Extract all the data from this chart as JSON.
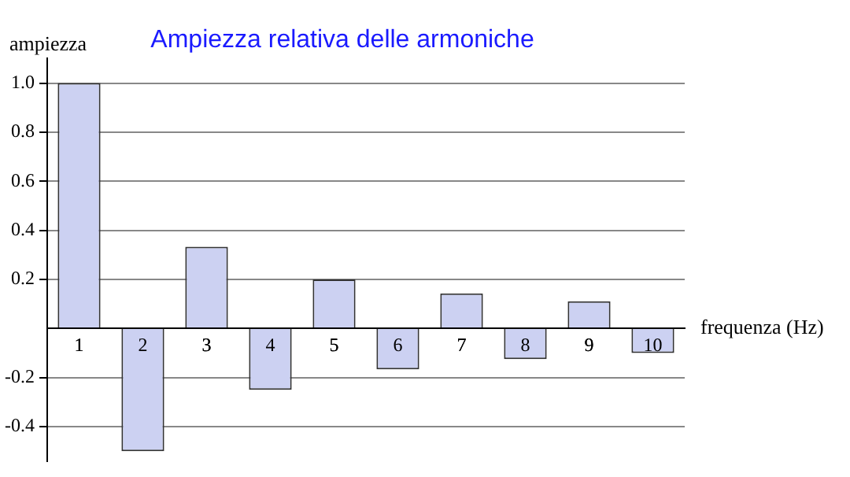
{
  "chart_data": {
    "type": "bar",
    "title": "Ampiezza relativa delle armoniche",
    "xlabel": "frequenza (Hz)",
    "ylabel": "ampiezza",
    "categories": [
      "1",
      "2",
      "3",
      "4",
      "5",
      "6",
      "7",
      "8",
      "9",
      "10"
    ],
    "values": [
      1,
      -0.5,
      0.333,
      -0.25,
      0.2,
      -0.167,
      0.143,
      -0.125,
      0.111,
      -0.1
    ],
    "color": "#ccd1f2",
    "ylim": [
      -0.54,
      1.1
    ],
    "yticks": [
      -0.4,
      -0.2,
      0.2,
      0.4,
      0.6,
      0.8,
      {
        "value": 1,
        "label": "1.0"
      }
    ],
    "grid": "y"
  }
}
